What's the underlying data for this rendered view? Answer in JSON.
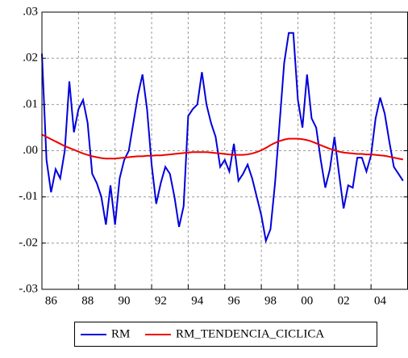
{
  "chart_data": {
    "type": "line",
    "x": [
      1986,
      1986.25,
      1986.5,
      1986.75,
      1987,
      1987.25,
      1987.5,
      1987.75,
      1988,
      1988.25,
      1988.5,
      1988.75,
      1989,
      1989.25,
      1989.5,
      1989.75,
      1990,
      1990.25,
      1990.5,
      1990.75,
      1991,
      1991.25,
      1991.5,
      1991.75,
      1992,
      1992.25,
      1992.5,
      1992.75,
      1993,
      1993.25,
      1993.5,
      1993.75,
      1994,
      1994.25,
      1994.5,
      1994.75,
      1995,
      1995.25,
      1995.5,
      1995.75,
      1996,
      1996.25,
      1996.5,
      1996.75,
      1997,
      1997.25,
      1997.5,
      1997.75,
      1998,
      1998.25,
      1998.5,
      1998.75,
      1999,
      1999.25,
      1999.5,
      1999.75,
      2000,
      2000.25,
      2000.5,
      2000.75,
      2001,
      2001.25,
      2001.5,
      2001.75,
      2002,
      2002.25,
      2002.5,
      2002.75,
      2003,
      2003.25,
      2003.5,
      2003.75,
      2004,
      2004.25,
      2004.5,
      2004.75,
      2005,
      2005.25,
      2005.5,
      2005.75
    ],
    "series": [
      {
        "name": "RM",
        "color": "#0000dd",
        "values": [
          0.021,
          -0.002,
          -0.009,
          -0.004,
          -0.006,
          0.0,
          0.015,
          0.004,
          0.009,
          0.011,
          0.006,
          -0.005,
          -0.007,
          -0.01,
          -0.016,
          -0.0075,
          -0.016,
          -0.006,
          -0.002,
          0.0,
          0.006,
          0.012,
          0.0165,
          0.009,
          -0.003,
          -0.0115,
          -0.007,
          -0.0035,
          -0.005,
          -0.01,
          -0.0165,
          -0.012,
          0.0075,
          0.009,
          0.01,
          0.017,
          0.01,
          0.006,
          0.003,
          -0.0035,
          -0.002,
          -0.0045,
          0.0015,
          -0.0065,
          -0.005,
          -0.003,
          -0.006,
          -0.01,
          -0.014,
          -0.0195,
          -0.017,
          -0.007,
          0.006,
          0.019,
          0.0255,
          0.0255,
          0.011,
          0.005,
          0.0165,
          0.007,
          0.005,
          -0.002,
          -0.008,
          -0.004,
          0.003,
          -0.005,
          -0.0125,
          -0.0075,
          -0.008,
          -0.0015,
          -0.0015,
          -0.0045,
          -0.001,
          0.007,
          0.0115,
          0.008,
          0.002,
          -0.0035,
          -0.005,
          -0.0065
        ]
      },
      {
        "name": "RM_TENDENCIA_CICLICA",
        "color": "#ee0000",
        "values": [
          0.0035,
          0.003,
          0.0025,
          0.002,
          0.0015,
          0.001,
          0.0006,
          0.0002,
          -0.0002,
          -0.0006,
          -0.0009,
          -0.0012,
          -0.0014,
          -0.0016,
          -0.0017,
          -0.0017,
          -0.0017,
          -0.0016,
          -0.0015,
          -0.0014,
          -0.0013,
          -0.0012,
          -0.0012,
          -0.0011,
          -0.0011,
          -0.001,
          -0.001,
          -0.0009,
          -0.0008,
          -0.0007,
          -0.0006,
          -0.0005,
          -0.0004,
          -0.0003,
          -0.0003,
          -0.0003,
          -0.0003,
          -0.0004,
          -0.0005,
          -0.0006,
          -0.0007,
          -0.0008,
          -0.0009,
          -0.0009,
          -0.0009,
          -0.0008,
          -0.0006,
          -0.0003,
          0.0001,
          0.0006,
          0.0012,
          0.0017,
          0.0021,
          0.0024,
          0.0026,
          0.0026,
          0.0026,
          0.0025,
          0.0023,
          0.002,
          0.0016,
          0.0012,
          0.0008,
          0.0004,
          0.0001,
          -0.0002,
          -0.0004,
          -0.0005,
          -0.0006,
          -0.0007,
          -0.0007,
          -0.0008,
          -0.0008,
          -0.0009,
          -0.001,
          -0.0011,
          -0.0013,
          -0.0015,
          -0.0017,
          -0.0019
        ]
      }
    ],
    "xlim": [
      1986,
      2006
    ],
    "xticks": [
      {
        "value": 1986.5,
        "label": "86"
      },
      {
        "value": 1988.5,
        "label": "88"
      },
      {
        "value": 1990.5,
        "label": "90"
      },
      {
        "value": 1992.5,
        "label": "92"
      },
      {
        "value": 1994.5,
        "label": "94"
      },
      {
        "value": 1996.5,
        "label": "96"
      },
      {
        "value": 1998.5,
        "label": "98"
      },
      {
        "value": 2000.5,
        "label": "00"
      },
      {
        "value": 2002.5,
        "label": "02"
      },
      {
        "value": 2004.5,
        "label": "04"
      }
    ],
    "x_gridlines": [
      1988,
      1990,
      1992,
      1994,
      1996,
      1998,
      2000,
      2002,
      2004
    ],
    "ylim": [
      -0.03,
      0.03
    ],
    "yticks": [
      {
        "value": -0.03,
        "label": "-.03"
      },
      {
        "value": -0.02,
        "label": "-.02"
      },
      {
        "value": -0.01,
        "label": "-.01"
      },
      {
        "value": 0,
        "label": ".00"
      },
      {
        "value": 0.01,
        "label": ".01"
      },
      {
        "value": 0.02,
        "label": ".02"
      },
      {
        "value": 0.03,
        "label": ".03"
      }
    ],
    "grid": true,
    "legend": "bottom"
  }
}
